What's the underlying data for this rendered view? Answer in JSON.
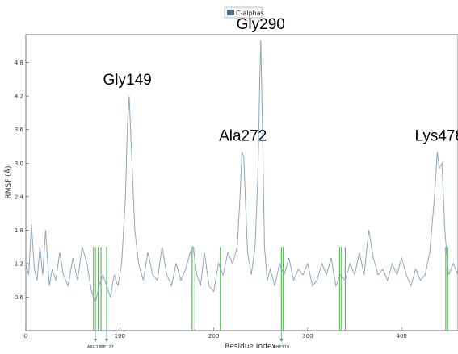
{
  "chart_data": {
    "type": "line",
    "xlabel": "Residue Index",
    "ylabel": "RMSF (Å)",
    "xlim": [
      0,
      460
    ],
    "ylim": [
      0,
      5.3
    ],
    "x_ticks": [
      0,
      100,
      200,
      300,
      400
    ],
    "y_ticks": [
      0.6,
      1.2,
      1.8,
      2.4,
      3.0,
      3.6,
      4.2,
      4.8
    ],
    "grid": false,
    "legend_position": "top-center",
    "line_color": "#8fa6b8",
    "marker_color": "#5cb85c",
    "series": [
      {
        "name": "C-alphas",
        "x": [
          0,
          3,
          6,
          9,
          12,
          15,
          18,
          21,
          25,
          28,
          32,
          36,
          40,
          45,
          50,
          55,
          60,
          65,
          70,
          74,
          78,
          82,
          86,
          90,
          94,
          98,
          102,
          106,
          108,
          110,
          113,
          116,
          120,
          125,
          130,
          135,
          140,
          145,
          150,
          155,
          160,
          165,
          170,
          175,
          178,
          182,
          186,
          190,
          195,
          200,
          205,
          210,
          215,
          220,
          225,
          228,
          230,
          232,
          234,
          236,
          240,
          244,
          247,
          249,
          250,
          252,
          254,
          257,
          260,
          265,
          270,
          275,
          280,
          285,
          290,
          295,
          300,
          305,
          310,
          315,
          320,
          325,
          330,
          335,
          340,
          345,
          350,
          355,
          360,
          365,
          370,
          375,
          380,
          385,
          390,
          395,
          400,
          405,
          410,
          415,
          420,
          425,
          430,
          435,
          438,
          440,
          443,
          446,
          450,
          455,
          460
        ],
        "y": [
          1.2,
          1.0,
          1.9,
          1.1,
          0.9,
          1.5,
          1.0,
          1.8,
          0.8,
          1.1,
          0.9,
          1.4,
          1.0,
          0.8,
          1.3,
          0.9,
          1.5,
          1.2,
          0.7,
          0.5,
          0.8,
          1.0,
          0.8,
          0.6,
          1.0,
          0.8,
          1.2,
          2.4,
          3.6,
          4.2,
          3.0,
          1.8,
          1.2,
          0.9,
          1.4,
          1.0,
          0.9,
          1.5,
          1.0,
          0.8,
          1.2,
          0.9,
          1.1,
          1.4,
          1.5,
          1.0,
          0.8,
          1.4,
          0.8,
          0.7,
          1.2,
          1.0,
          1.4,
          1.2,
          1.5,
          2.4,
          3.2,
          3.1,
          2.2,
          1.4,
          1.0,
          1.5,
          2.8,
          4.5,
          5.2,
          3.5,
          1.5,
          0.9,
          1.1,
          0.8,
          1.2,
          1.0,
          1.3,
          0.9,
          1.1,
          1.0,
          1.2,
          0.8,
          0.9,
          1.2,
          1.0,
          1.3,
          0.8,
          1.0,
          0.9,
          1.2,
          1.0,
          1.4,
          1.0,
          1.8,
          1.3,
          1.0,
          1.1,
          0.9,
          1.2,
          1.0,
          1.3,
          1.0,
          0.8,
          1.1,
          0.9,
          1.0,
          1.4,
          2.4,
          3.2,
          2.9,
          3.0,
          1.8,
          1.0,
          1.2,
          1.0
        ]
      }
    ],
    "contact_residues": [
      72,
      74,
      77,
      80,
      86,
      177,
      180,
      207,
      272,
      274,
      334,
      336,
      340,
      447,
      449
    ],
    "peak_labels": [
      {
        "text": "Gly149",
        "x": 108,
        "y": 4.2
      },
      {
        "text": "Ala272",
        "x": 231,
        "y": 3.2
      },
      {
        "text": "Gly290",
        "x": 250,
        "y": 5.2
      },
      {
        "text": "Lys478",
        "x": 440,
        "y": 3.2
      }
    ],
    "bottom_labels": [
      {
        "text": "ARG117",
        "x": 74
      },
      {
        "text": "ILE127",
        "x": 86
      },
      {
        "text": "PHE310",
        "x": 272
      }
    ]
  }
}
